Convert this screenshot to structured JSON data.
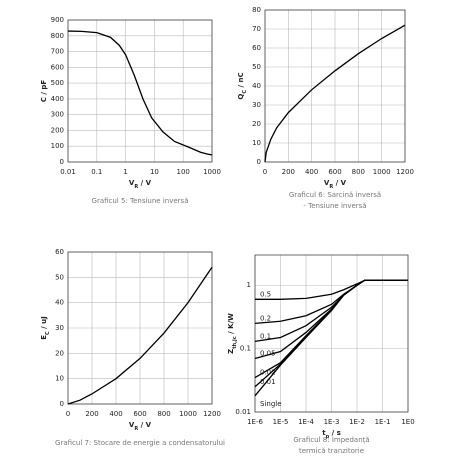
{
  "chart_data": [
    {
      "type": "line",
      "caption": [
        "Graficul 5: Tensiune inversă"
      ],
      "y_label": [
        {
          "text": "C / pF"
        }
      ],
      "x_label": [
        {
          "text": "V"
        },
        {
          "text": "R",
          "sub": true
        },
        {
          "text": " / V"
        }
      ],
      "x_scale": "log",
      "xlim": [
        0.01,
        1000
      ],
      "xticks": [
        0.01,
        0.1,
        1,
        10,
        100,
        1000
      ],
      "ylim": [
        0,
        900
      ],
      "yticks": [
        0,
        100,
        200,
        300,
        400,
        500,
        600,
        700,
        800,
        900
      ],
      "grid": true,
      "x": [
        0.01,
        0.03,
        0.1,
        0.3,
        0.6,
        1,
        2,
        4,
        8,
        20,
        50,
        150,
        400,
        700,
        1000
      ],
      "series": [
        {
          "color": "#000000",
          "values": [
            830,
            828,
            820,
            790,
            740,
            680,
            550,
            400,
            280,
            190,
            130,
            95,
            62,
            50,
            45
          ]
        }
      ]
    },
    {
      "type": "line",
      "caption": [
        "Graficul 6: Sarcină inversă",
        "- Tensiune inversă"
      ],
      "y_label": [
        {
          "text": "Q"
        },
        {
          "text": "C",
          "sub": true
        },
        {
          "text": " / nC"
        }
      ],
      "x_label": [
        {
          "text": "V"
        },
        {
          "text": "R",
          "sub": true
        },
        {
          "text": " / V"
        }
      ],
      "x_scale": "linear",
      "xlim": [
        0,
        1200
      ],
      "xticks": [
        0,
        200,
        400,
        600,
        800,
        1000,
        1200
      ],
      "ylim": [
        0,
        80
      ],
      "yticks": [
        0,
        10,
        20,
        30,
        40,
        50,
        60,
        70,
        80
      ],
      "grid": true,
      "x": [
        0,
        10,
        50,
        100,
        200,
        300,
        400,
        600,
        800,
        1000,
        1200
      ],
      "series": [
        {
          "color": "#000000",
          "values": [
            0,
            5,
            12,
            18,
            26,
            32,
            38,
            48,
            57,
            65,
            72
          ]
        }
      ]
    },
    {
      "type": "line",
      "caption": [
        "Graficul 7: Stocare de energie a condensatorului"
      ],
      "y_label": [
        {
          "text": "E"
        },
        {
          "text": "C",
          "sub": true
        },
        {
          "text": " / uJ"
        }
      ],
      "x_label": [
        {
          "text": "V"
        },
        {
          "text": "R",
          "sub": true
        },
        {
          "text": " / V"
        }
      ],
      "x_scale": "linear",
      "xlim": [
        0,
        1200
      ],
      "xticks": [
        0,
        200,
        400,
        600,
        800,
        1000,
        1200
      ],
      "ylim": [
        0,
        60
      ],
      "yticks": [
        0,
        10,
        20,
        30,
        40,
        50,
        60
      ],
      "grid": true,
      "x": [
        0,
        100,
        200,
        400,
        600,
        800,
        1000,
        1200
      ],
      "series": [
        {
          "color": "#000000",
          "values": [
            0,
            1.5,
            4,
            10,
            18,
            28,
            40,
            54
          ]
        }
      ]
    },
    {
      "type": "line",
      "caption": [
        "Graficul 8: Impedanță",
        "termică tranzitorie"
      ],
      "y_label": [
        {
          "text": "Z"
        },
        {
          "text": "th,jc",
          "sub": true
        },
        {
          "text": " / K/W"
        }
      ],
      "x_label": [
        {
          "text": "t"
        },
        {
          "text": "p",
          "sub": true
        },
        {
          "text": " / s"
        }
      ],
      "x_scale": "log",
      "y_scale": "log",
      "xlim": [
        1e-06,
        1
      ],
      "xticks": [
        {
          "value": 1e-06,
          "label": "1E-6"
        },
        {
          "value": 1e-05,
          "label": "1E-5"
        },
        {
          "value": 0.0001,
          "label": "1E-4"
        },
        {
          "value": 0.001,
          "label": "1E-3"
        },
        {
          "value": 0.01,
          "label": "1E-2"
        },
        {
          "value": 0.1,
          "label": "1E-1"
        },
        {
          "value": 1,
          "label": "1E0"
        }
      ],
      "ylim": [
        0.01,
        3
      ],
      "yticks": [
        0.01,
        0.1,
        1
      ],
      "grid": true,
      "x": [
        1e-06,
        1e-05,
        0.0001,
        0.001,
        0.003,
        0.01,
        0.02,
        1
      ],
      "series": [
        {
          "name": "0.5",
          "color": "#000000",
          "values": [
            0.6,
            0.6,
            0.62,
            0.72,
            0.85,
            1.05,
            1.2,
            1.2
          ]
        },
        {
          "name": "0.2",
          "color": "#000000",
          "values": [
            0.25,
            0.27,
            0.33,
            0.5,
            0.72,
            1.0,
            1.2,
            1.2
          ]
        },
        {
          "name": "0.1",
          "color": "#000000",
          "values": [
            0.13,
            0.15,
            0.23,
            0.45,
            0.7,
            1.0,
            1.2,
            1.2
          ]
        },
        {
          "name": "0.05",
          "color": "#000000",
          "values": [
            0.07,
            0.09,
            0.18,
            0.42,
            0.7,
            1.0,
            1.2,
            1.2
          ]
        },
        {
          "name": "0.02",
          "color": "#000000",
          "values": [
            0.035,
            0.06,
            0.16,
            0.41,
            0.7,
            1.0,
            1.2,
            1.2
          ]
        },
        {
          "name": "0.01",
          "color": "#000000",
          "values": [
            0.025,
            0.057,
            0.155,
            0.4,
            0.7,
            1.0,
            1.2,
            1.2
          ]
        },
        {
          "name": "Single",
          "color": "#000000",
          "values": [
            0.018,
            0.055,
            0.15,
            0.4,
            0.7,
            1.0,
            1.2,
            1.2
          ]
        }
      ]
    }
  ]
}
